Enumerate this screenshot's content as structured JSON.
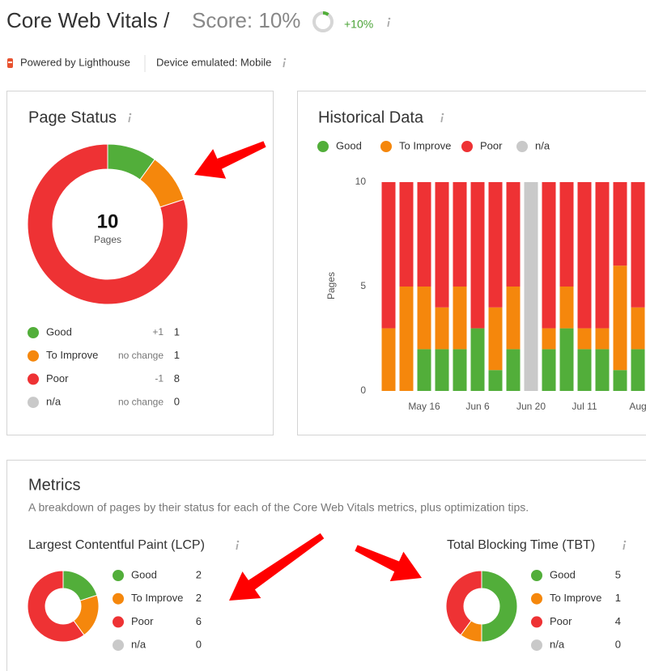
{
  "header": {
    "title": "Core Web Vitals /",
    "score": "Score: 10%",
    "score_gauge": 10,
    "change": "+10%",
    "powered": "Powered by Lighthouse",
    "device": "Device emulated: Mobile"
  },
  "metrics": {
    "title": "Metrics",
    "description": "A breakdown of pages by their status for each of the Core Web Vitals metrics, plus optimization tips."
  },
  "chart_data": [
    {
      "type": "pie",
      "title": "Page Status",
      "center_value": 10,
      "center_label": "Pages",
      "categories": [
        "Good",
        "To Improve",
        "Poor",
        "n/a"
      ],
      "values": [
        1,
        1,
        8,
        0
      ],
      "changes": [
        "+1",
        "no change",
        "-1",
        "no change"
      ],
      "colors": [
        "#52ae3a",
        "#f5870c",
        "#ee3234",
        "#c9c9c9"
      ]
    },
    {
      "type": "bar",
      "stacked": true,
      "title": "Historical Data",
      "ylabel": "Pages",
      "categories": [
        null,
        null,
        "May 16",
        null,
        null,
        "Jun 6",
        null,
        null,
        "Jun 20",
        null,
        null,
        "Jul 11",
        null,
        null,
        "Aug"
      ],
      "series": [
        {
          "name": "Good",
          "color": "#52ae3a",
          "values": [
            0,
            0,
            2,
            2,
            2,
            3,
            1,
            2,
            0,
            2,
            3,
            2,
            2,
            1,
            2
          ]
        },
        {
          "name": "To Improve",
          "color": "#f5870c",
          "values": [
            3,
            5,
            3,
            2,
            3,
            0,
            3,
            3,
            0,
            1,
            2,
            1,
            1,
            5,
            2
          ]
        },
        {
          "name": "Poor",
          "color": "#ee3234",
          "values": [
            7,
            5,
            5,
            6,
            5,
            7,
            6,
            5,
            0,
            7,
            5,
            7,
            7,
            4,
            6
          ]
        },
        {
          "name": "n/a",
          "color": "#c9c9c9",
          "values": [
            0,
            0,
            0,
            0,
            0,
            0,
            0,
            0,
            10,
            0,
            0,
            0,
            0,
            0,
            0
          ]
        }
      ],
      "ylim": [
        0,
        10
      ],
      "yticks": [
        0,
        5,
        10
      ]
    },
    {
      "type": "pie",
      "title": "Largest Contentful Paint (LCP)",
      "categories": [
        "Good",
        "To Improve",
        "Poor",
        "n/a"
      ],
      "values": [
        2,
        2,
        6,
        0
      ],
      "colors": [
        "#52ae3a",
        "#f5870c",
        "#ee3234",
        "#c9c9c9"
      ]
    },
    {
      "type": "pie",
      "title": "Total Blocking Time (TBT)",
      "categories": [
        "Good",
        "To Improve",
        "Poor",
        "n/a"
      ],
      "values": [
        5,
        1,
        4,
        0
      ],
      "colors": [
        "#52ae3a",
        "#f5870c",
        "#ee3234",
        "#c9c9c9"
      ]
    }
  ]
}
